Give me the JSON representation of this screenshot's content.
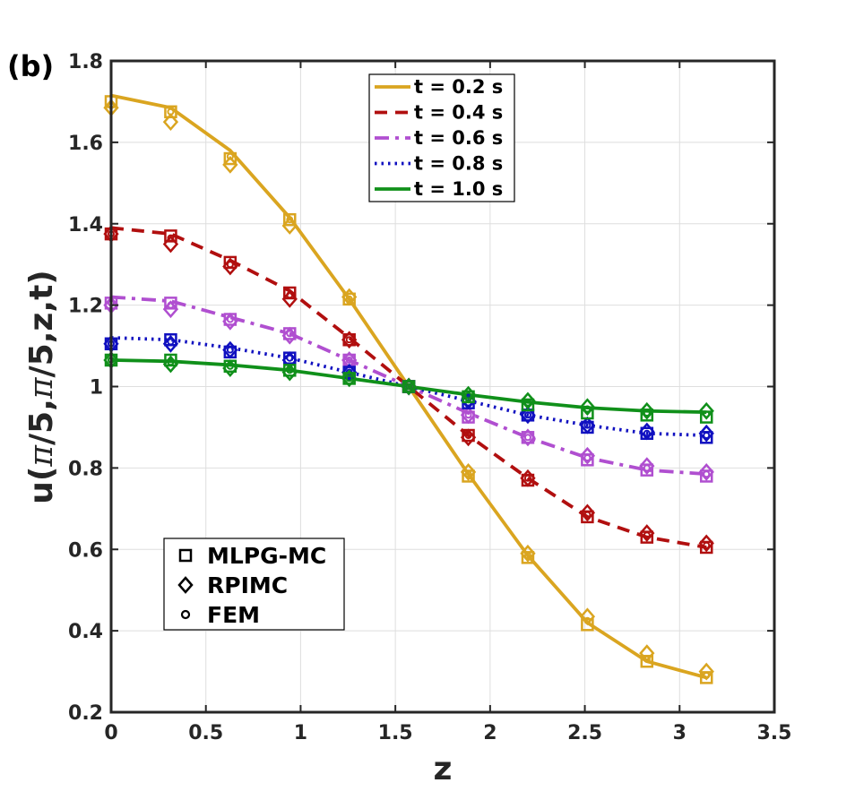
{
  "panel_label": "(b)",
  "chart_data": {
    "type": "line",
    "xlabel": "z",
    "ylabel_parts": [
      "u(",
      "π",
      "/5,",
      "π",
      "/5,z,t)"
    ],
    "xlim": [
      0,
      3.5
    ],
    "ylim": [
      0.2,
      1.8
    ],
    "xticks": [
      0,
      0.5,
      1,
      1.5,
      2,
      2.5,
      3,
      3.5
    ],
    "xtick_labels": [
      "0",
      "0.5",
      "1",
      "1.5",
      "2",
      "2.5",
      "3",
      "3.5"
    ],
    "yticks": [
      0.2,
      0.4,
      0.6,
      0.8,
      1,
      1.2,
      1.4,
      1.6,
      1.8
    ],
    "ytick_labels": [
      "0.2",
      "0.4",
      "0.6",
      "0.8",
      "1",
      "1.2",
      "1.4",
      "1.6",
      "1.8"
    ],
    "grid": true,
    "x": [
      0,
      0.3142,
      0.6283,
      0.9425,
      1.2566,
      1.5708,
      1.885,
      2.1991,
      2.5133,
      2.8274,
      3.1416
    ],
    "series": [
      {
        "name": "t = 0.2 s",
        "color": "#daa520",
        "dash": "solid",
        "values": [
          1.715,
          1.685,
          1.58,
          1.415,
          1.215,
          1.0,
          0.785,
          0.585,
          0.42,
          0.325,
          0.285
        ],
        "mlpg": [
          1.7,
          1.675,
          1.56,
          1.41,
          1.215,
          1.0,
          0.78,
          0.58,
          0.415,
          0.325,
          0.285
        ],
        "rpimc": [
          1.685,
          1.65,
          1.545,
          1.395,
          1.22,
          1.0,
          0.79,
          0.59,
          0.435,
          0.345,
          0.3
        ],
        "fem": [
          1.69,
          1.675,
          1.565,
          1.41,
          1.215,
          1.0,
          0.785,
          0.585,
          0.425,
          0.33,
          0.29
        ]
      },
      {
        "name": "t = 0.4 s",
        "color": "#b10f0f",
        "dash": "dashed",
        "values": [
          1.39,
          1.375,
          1.31,
          1.235,
          1.12,
          1.0,
          0.88,
          0.775,
          0.68,
          0.63,
          0.605
        ],
        "mlpg": [
          1.375,
          1.37,
          1.305,
          1.23,
          1.115,
          1.0,
          0.88,
          0.77,
          0.68,
          0.63,
          0.605
        ],
        "rpimc": [
          1.375,
          1.35,
          1.295,
          1.215,
          1.115,
          1.0,
          0.875,
          0.775,
          0.69,
          0.64,
          0.615
        ],
        "fem": [
          1.375,
          1.365,
          1.3,
          1.225,
          1.115,
          1.0,
          0.88,
          0.775,
          0.685,
          0.635,
          0.61
        ]
      },
      {
        "name": "t = 0.6 s",
        "color": "#b04fd0",
        "dash": "dashdot",
        "values": [
          1.22,
          1.21,
          1.17,
          1.13,
          1.065,
          1.0,
          0.935,
          0.875,
          0.825,
          0.795,
          0.785
        ],
        "mlpg": [
          1.205,
          1.205,
          1.165,
          1.13,
          1.065,
          1.0,
          0.925,
          0.875,
          0.82,
          0.795,
          0.78
        ],
        "rpimc": [
          1.2,
          1.19,
          1.16,
          1.125,
          1.065,
          1.0,
          0.93,
          0.875,
          0.83,
          0.805,
          0.79
        ],
        "fem": [
          1.205,
          1.2,
          1.165,
          1.13,
          1.065,
          1.0,
          0.93,
          0.875,
          0.825,
          0.8,
          0.785
        ]
      },
      {
        "name": "t = 0.8 s",
        "color": "#1010c0",
        "dash": "dotted",
        "values": [
          1.12,
          1.115,
          1.095,
          1.07,
          1.035,
          1.0,
          0.965,
          0.93,
          0.905,
          0.885,
          0.88
        ],
        "mlpg": [
          1.105,
          1.115,
          1.085,
          1.07,
          1.035,
          1.0,
          0.96,
          0.93,
          0.9,
          0.885,
          0.875
        ],
        "rpimc": [
          1.105,
          1.105,
          1.09,
          1.065,
          1.035,
          1.0,
          0.965,
          0.93,
          0.905,
          0.89,
          0.885
        ],
        "fem": [
          1.105,
          1.11,
          1.09,
          1.07,
          1.035,
          1.0,
          0.96,
          0.93,
          0.905,
          0.885,
          0.88
        ]
      },
      {
        "name": "t = 1.0 s",
        "color": "#10901a",
        "dash": "solid",
        "values": [
          1.065,
          1.062,
          1.053,
          1.04,
          1.02,
          1.0,
          0.98,
          0.962,
          0.948,
          0.94,
          0.937
        ],
        "mlpg": [
          1.065,
          1.065,
          1.05,
          1.04,
          1.02,
          1.0,
          0.975,
          0.955,
          0.935,
          0.93,
          0.925
        ],
        "rpimc": [
          1.065,
          1.055,
          1.045,
          1.035,
          1.02,
          1.0,
          0.98,
          0.965,
          0.95,
          0.94,
          0.94
        ],
        "fem": [
          1.065,
          1.06,
          1.05,
          1.04,
          1.02,
          1.0,
          0.978,
          0.96,
          0.945,
          0.935,
          0.932
        ]
      }
    ],
    "marker_legend": [
      {
        "symbol": "square",
        "label": "MLPG-MC"
      },
      {
        "symbol": "diamond",
        "label": "RPIMC"
      },
      {
        "symbol": "circle",
        "label": "FEM"
      }
    ]
  }
}
